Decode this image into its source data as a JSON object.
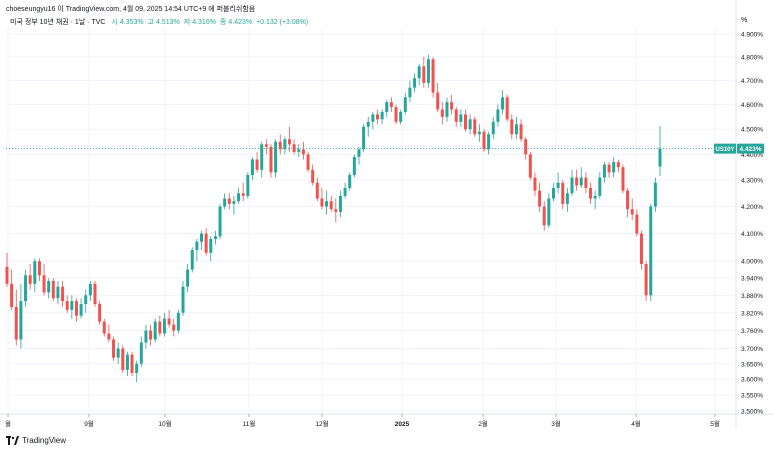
{
  "header": {
    "top_line": "choeseungyu16 이 TradingView.com, 4월 09, 2025 14:54 UTC+9 에 퍼블리쉬함음",
    "symbol_title": "미국 정부 10년 채권 · 1날 · TVC",
    "ohlc": {
      "open_label": "시",
      "open": "4.353%",
      "high_label": "고",
      "high": "4.513%",
      "low_label": "저",
      "low": "4.316%",
      "close_label": "종",
      "close": "4.423%",
      "change": "+0.132 (+3.08%)"
    },
    "unit": "%"
  },
  "footer": {
    "brand": "TradingView"
  },
  "colors": {
    "up": "#26a69a",
    "down": "#ef5350",
    "grid": "#f0f3fa",
    "price_label_bg": "#26a69a"
  },
  "chart_data": {
    "type": "candlestick",
    "symbol": "US10Y",
    "last_price": 4.423,
    "last_price_label": "US10Y",
    "last_price_text": "4.423%",
    "y_ticks": [
      "4.900%",
      "4.800%",
      "4.700%",
      "4.600%",
      "4.500%",
      "4.400%",
      "4.300%",
      "4.200%",
      "4.100%",
      "4.000%",
      "3.940%",
      "3.880%",
      "3.820%",
      "3.760%",
      "3.700%",
      "3.650%",
      "3.600%",
      "3.550%",
      "3.500%"
    ],
    "y_tick_values": [
      4.9,
      4.8,
      4.7,
      4.6,
      4.5,
      4.4,
      4.3,
      4.2,
      4.1,
      4.0,
      3.94,
      3.88,
      3.82,
      3.76,
      3.7,
      3.65,
      3.6,
      3.55,
      3.5
    ],
    "y_scale": "log",
    "ylim": [
      3.49,
      4.93
    ],
    "x_labels": [
      "월",
      "9월",
      "10월",
      "11월",
      "12월",
      "2025",
      "2월",
      "3월",
      "4월",
      "5월"
    ],
    "grid": true,
    "candles": [
      [
        3.98,
        4.03,
        3.91,
        3.92
      ],
      [
        3.92,
        3.97,
        3.83,
        3.84
      ],
      [
        3.84,
        3.9,
        3.71,
        3.73
      ],
      [
        3.73,
        3.92,
        3.7,
        3.86
      ],
      [
        3.86,
        3.97,
        3.84,
        3.95
      ],
      [
        3.95,
        3.99,
        3.9,
        3.92
      ],
      [
        3.92,
        4.01,
        3.89,
        4.0
      ],
      [
        4.0,
        4.01,
        3.93,
        3.95
      ],
      [
        3.95,
        3.99,
        3.88,
        3.89
      ],
      [
        3.89,
        3.94,
        3.87,
        3.93
      ],
      [
        3.93,
        3.94,
        3.86,
        3.87
      ],
      [
        3.87,
        3.93,
        3.85,
        3.91
      ],
      [
        3.91,
        3.93,
        3.84,
        3.86
      ],
      [
        3.86,
        3.88,
        3.82,
        3.83
      ],
      [
        3.83,
        3.88,
        3.8,
        3.86
      ],
      [
        3.86,
        3.87,
        3.79,
        3.81
      ],
      [
        3.81,
        3.87,
        3.8,
        3.85
      ],
      [
        3.85,
        3.9,
        3.82,
        3.88
      ],
      [
        3.88,
        3.93,
        3.86,
        3.92
      ],
      [
        3.92,
        3.93,
        3.84,
        3.85
      ],
      [
        3.85,
        3.86,
        3.78,
        3.79
      ],
      [
        3.79,
        3.8,
        3.74,
        3.75
      ],
      [
        3.75,
        3.78,
        3.72,
        3.73
      ],
      [
        3.73,
        3.74,
        3.66,
        3.67
      ],
      [
        3.67,
        3.72,
        3.65,
        3.7
      ],
      [
        3.7,
        3.71,
        3.62,
        3.63
      ],
      [
        3.63,
        3.69,
        3.61,
        3.68
      ],
      [
        3.68,
        3.69,
        3.61,
        3.62
      ],
      [
        3.62,
        3.66,
        3.59,
        3.65
      ],
      [
        3.65,
        3.74,
        3.64,
        3.72
      ],
      [
        3.72,
        3.78,
        3.7,
        3.76
      ],
      [
        3.76,
        3.78,
        3.71,
        3.73
      ],
      [
        3.73,
        3.8,
        3.72,
        3.79
      ],
      [
        3.79,
        3.81,
        3.74,
        3.75
      ],
      [
        3.75,
        3.82,
        3.74,
        3.8
      ],
      [
        3.8,
        3.83,
        3.77,
        3.78
      ],
      [
        3.78,
        3.8,
        3.74,
        3.76
      ],
      [
        3.76,
        3.83,
        3.75,
        3.82
      ],
      [
        3.82,
        3.93,
        3.81,
        3.91
      ],
      [
        3.91,
        3.99,
        3.89,
        3.97
      ],
      [
        3.97,
        4.05,
        3.96,
        4.04
      ],
      [
        4.04,
        4.08,
        4.0,
        4.07
      ],
      [
        4.07,
        4.11,
        4.04,
        4.1
      ],
      [
        4.1,
        4.12,
        4.02,
        4.03
      ],
      [
        4.03,
        4.09,
        4.0,
        4.08
      ],
      [
        4.08,
        4.11,
        4.06,
        4.09
      ],
      [
        4.09,
        4.21,
        4.08,
        4.2
      ],
      [
        4.2,
        4.25,
        4.19,
        4.23
      ],
      [
        4.23,
        4.25,
        4.19,
        4.21
      ],
      [
        4.21,
        4.24,
        4.17,
        4.22
      ],
      [
        4.22,
        4.27,
        4.21,
        4.25
      ],
      [
        4.25,
        4.29,
        4.22,
        4.24
      ],
      [
        4.24,
        4.33,
        4.23,
        4.32
      ],
      [
        4.32,
        4.39,
        4.3,
        4.38
      ],
      [
        4.38,
        4.41,
        4.33,
        4.34
      ],
      [
        4.34,
        4.45,
        4.31,
        4.44
      ],
      [
        4.44,
        4.46,
        4.4,
        4.43
      ],
      [
        4.43,
        4.44,
        4.31,
        4.33
      ],
      [
        4.33,
        4.46,
        4.31,
        4.45
      ],
      [
        4.45,
        4.48,
        4.4,
        4.42
      ],
      [
        4.42,
        4.47,
        4.4,
        4.46
      ],
      [
        4.46,
        4.51,
        4.41,
        4.44
      ],
      [
        4.44,
        4.46,
        4.4,
        4.41
      ],
      [
        4.41,
        4.44,
        4.39,
        4.42
      ],
      [
        4.42,
        4.45,
        4.38,
        4.4
      ],
      [
        4.4,
        4.41,
        4.33,
        4.34
      ],
      [
        4.34,
        4.36,
        4.28,
        4.29
      ],
      [
        4.29,
        4.31,
        4.22,
        4.23
      ],
      [
        4.23,
        4.27,
        4.19,
        4.2
      ],
      [
        4.2,
        4.26,
        4.17,
        4.22
      ],
      [
        4.22,
        4.24,
        4.18,
        4.19
      ],
      [
        4.19,
        4.23,
        4.14,
        4.18
      ],
      [
        4.18,
        4.26,
        4.16,
        4.24
      ],
      [
        4.24,
        4.29,
        4.23,
        4.27
      ],
      [
        4.27,
        4.33,
        4.26,
        4.32
      ],
      [
        4.32,
        4.4,
        4.31,
        4.39
      ],
      [
        4.39,
        4.43,
        4.36,
        4.42
      ],
      [
        4.42,
        4.52,
        4.41,
        4.51
      ],
      [
        4.51,
        4.55,
        4.47,
        4.53
      ],
      [
        4.53,
        4.57,
        4.5,
        4.56
      ],
      [
        4.56,
        4.58,
        4.52,
        4.54
      ],
      [
        4.54,
        4.58,
        4.52,
        4.57
      ],
      [
        4.57,
        4.62,
        4.55,
        4.61
      ],
      [
        4.61,
        4.63,
        4.57,
        4.59
      ],
      [
        4.59,
        4.6,
        4.52,
        4.53
      ],
      [
        4.53,
        4.58,
        4.52,
        4.57
      ],
      [
        4.57,
        4.65,
        4.56,
        4.63
      ],
      [
        4.63,
        4.7,
        4.61,
        4.67
      ],
      [
        4.67,
        4.73,
        4.65,
        4.71
      ],
      [
        4.71,
        4.77,
        4.68,
        4.76
      ],
      [
        4.76,
        4.8,
        4.67,
        4.69
      ],
      [
        4.69,
        4.81,
        4.67,
        4.79
      ],
      [
        4.79,
        4.8,
        4.63,
        4.65
      ],
      [
        4.65,
        4.69,
        4.57,
        4.58
      ],
      [
        4.58,
        4.61,
        4.52,
        4.55
      ],
      [
        4.55,
        4.63,
        4.53,
        4.61
      ],
      [
        4.61,
        4.64,
        4.56,
        4.58
      ],
      [
        4.58,
        4.59,
        4.51,
        4.53
      ],
      [
        4.53,
        4.58,
        4.51,
        4.56
      ],
      [
        4.56,
        4.58,
        4.49,
        4.5
      ],
      [
        4.5,
        4.56,
        4.48,
        4.54
      ],
      [
        4.54,
        4.55,
        4.47,
        4.48
      ],
      [
        4.48,
        4.52,
        4.45,
        4.49
      ],
      [
        4.49,
        4.5,
        4.41,
        4.42
      ],
      [
        4.42,
        4.49,
        4.4,
        4.48
      ],
      [
        4.48,
        4.55,
        4.46,
        4.53
      ],
      [
        4.53,
        4.6,
        4.51,
        4.58
      ],
      [
        4.58,
        4.66,
        4.56,
        4.63
      ],
      [
        4.63,
        4.64,
        4.53,
        4.54
      ],
      [
        4.54,
        4.56,
        4.46,
        4.48
      ],
      [
        4.48,
        4.55,
        4.46,
        4.52
      ],
      [
        4.52,
        4.54,
        4.45,
        4.46
      ],
      [
        4.46,
        4.47,
        4.38,
        4.4
      ],
      [
        4.4,
        4.41,
        4.3,
        4.31
      ],
      [
        4.31,
        4.33,
        4.24,
        4.26
      ],
      [
        4.26,
        4.29,
        4.18,
        4.2
      ],
      [
        4.2,
        4.22,
        4.11,
        4.13
      ],
      [
        4.13,
        4.25,
        4.12,
        4.23
      ],
      [
        4.23,
        4.29,
        4.22,
        4.27
      ],
      [
        4.27,
        4.33,
        4.25,
        4.29
      ],
      [
        4.29,
        4.3,
        4.19,
        4.21
      ],
      [
        4.21,
        4.27,
        4.18,
        4.25
      ],
      [
        4.25,
        4.34,
        4.24,
        4.31
      ],
      [
        4.31,
        4.34,
        4.26,
        4.28
      ],
      [
        4.28,
        4.35,
        4.27,
        4.31
      ],
      [
        4.31,
        4.33,
        4.25,
        4.27
      ],
      [
        4.27,
        4.29,
        4.21,
        4.23
      ],
      [
        4.23,
        4.26,
        4.19,
        4.24
      ],
      [
        4.24,
        4.33,
        4.23,
        4.31
      ],
      [
        4.31,
        4.37,
        4.29,
        4.36
      ],
      [
        4.36,
        4.37,
        4.31,
        4.33
      ],
      [
        4.33,
        4.39,
        4.31,
        4.37
      ],
      [
        4.37,
        4.38,
        4.33,
        4.35
      ],
      [
        4.35,
        4.36,
        4.25,
        4.26
      ],
      [
        4.26,
        4.27,
        4.16,
        4.19
      ],
      [
        4.19,
        4.23,
        4.15,
        4.17
      ],
      [
        4.17,
        4.19,
        4.09,
        4.1
      ],
      [
        4.1,
        4.11,
        3.97,
        3.99
      ],
      [
        3.99,
        4.0,
        3.86,
        3.88
      ],
      [
        3.88,
        4.21,
        3.86,
        4.2
      ],
      [
        4.2,
        4.31,
        4.18,
        4.29
      ],
      [
        4.353,
        4.513,
        4.316,
        4.423
      ]
    ]
  }
}
